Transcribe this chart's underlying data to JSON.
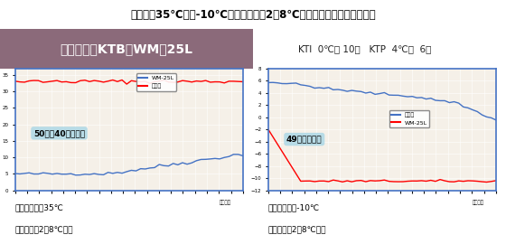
{
  "title": "「外気温35℃及び-10℃を想定とした2〜8℃輸送」を目的とした使用例",
  "box_label": "ボックス：KTB－WM－25L",
  "kti_label": "KTI  0℃用 10個   KTP  4℃用  6個",
  "title_bg": "#c0c0c0",
  "box_bg": "#8b6a7a",
  "kti_bg": "#c4a8b0",
  "chart_bg": "#f5f0e8",
  "chart_border": "#4472c4",
  "annotation_bg": "#add8e6",
  "annotation1": "50時間40分を維持",
  "annotation2": "49時間を維持",
  "footer1_line1": "外気温設定：35℃",
  "footer1_line2": "維持温度：2〜8℃以内",
  "footer2_line1": "外気温設定：-10℃",
  "footer2_line2": "維持温度：2〜8℃以内",
  "xlabel": "経過時間",
  "chart1_legend1": "WM-25L",
  "chart1_legend2": "恒温室",
  "chart2_legend1": "恒温室",
  "chart2_legend2": "WM-25L",
  "chart1_ylim": [
    0,
    37
  ],
  "chart2_ylim": [
    -12,
    8
  ],
  "chart1_yticks": [
    0,
    5,
    10,
    15,
    20,
    25,
    30,
    35
  ],
  "chart2_yticks": [
    -12,
    -10,
    -8,
    -6,
    -4,
    -2,
    0,
    2,
    4,
    6,
    8
  ],
  "n_points": 50,
  "chart1_line1_color": "#4472c4",
  "chart1_line2_color": "#ff0000",
  "chart2_line1_color": "#4472c4",
  "chart2_line2_color": "#ff0000",
  "outer_bg": "#ffffff"
}
